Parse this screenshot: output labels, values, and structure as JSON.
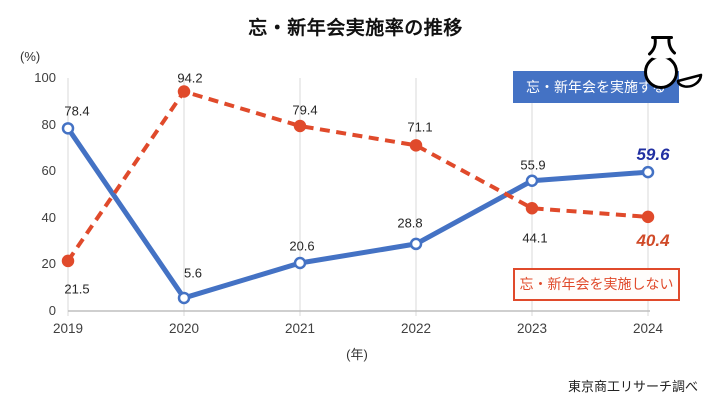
{
  "title": "忘・新年会実施率の推移",
  "y_axis_unit": "(%)",
  "x_axis_unit": "(年)",
  "source": "東京商工リサーチ調べ",
  "legend": {
    "hold": "忘・新年会を実施する",
    "not_hold": "忘・新年会を実施しない"
  },
  "colors": {
    "hold_line": "#4472C4",
    "not_hold_line": "#E04A2B",
    "hold_final_label": "#2230A2",
    "not_hold_final_label": "#D04A28",
    "gridline": "#D9D9D9",
    "axis_line": "#BFBFBF"
  },
  "chart_data": {
    "type": "line",
    "title": "忘・新年会実施率の推移",
    "categories": [
      "2019",
      "2020",
      "2021",
      "2022",
      "2023",
      "2024"
    ],
    "series": [
      {
        "name": "忘・新年会を実施する",
        "values": [
          78.4,
          5.6,
          20.6,
          28.8,
          55.9,
          59.6
        ],
        "style": "solid",
        "color": "#4472C4",
        "marker": "open-circle"
      },
      {
        "name": "忘・新年会を実施しない",
        "values": [
          21.5,
          94.2,
          79.4,
          71.1,
          44.1,
          40.4
        ],
        "style": "dashed",
        "color": "#E04A2B",
        "marker": "filled-circle"
      }
    ],
    "xlabel": "(年)",
    "ylabel": "(%)",
    "ylim": [
      0,
      100
    ],
    "yticks": [
      0,
      20,
      40,
      60,
      80,
      100
    ],
    "grid": "vertical-only",
    "legend_position": "inline-boxes-right"
  }
}
